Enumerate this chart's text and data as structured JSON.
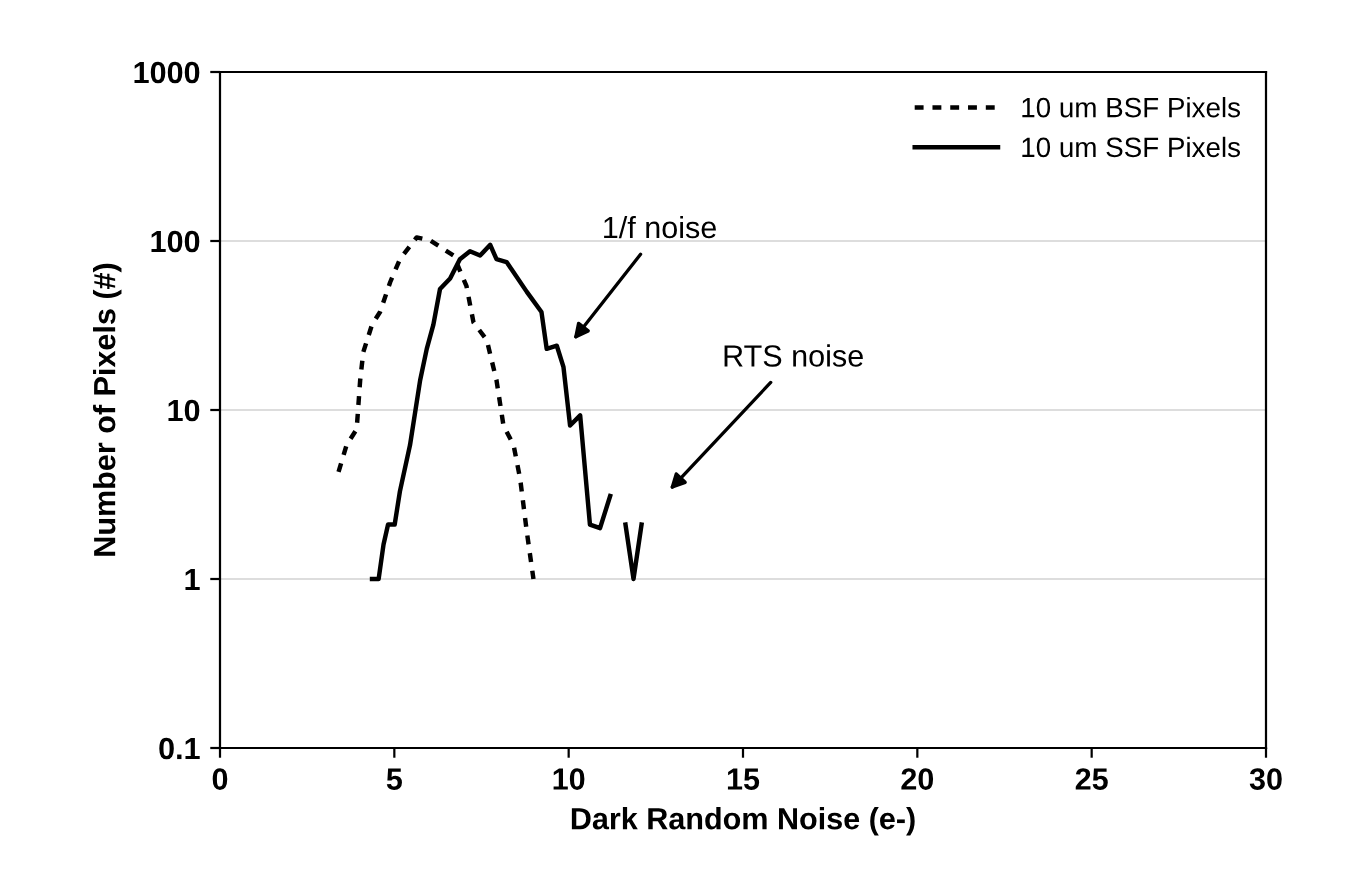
{
  "chart_data": {
    "type": "line",
    "xlabel": "Dark Random Noise (e-)",
    "ylabel": "Number of Pixels (#)",
    "log": "y",
    "grid": "y",
    "legend": "top right",
    "xlim": [
      0,
      30
    ],
    "xticks": [
      0,
      5,
      10,
      15,
      20,
      25,
      30
    ],
    "ylim": [
      0.1,
      1000
    ],
    "yticks": [
      0.1,
      1,
      10,
      100,
      1000
    ],
    "series": [
      {
        "name": "10 um BSF Pixels",
        "color": "#000000",
        "line_style": "dotted",
        "x": [
          3.4,
          3.63,
          3.92,
          4.02,
          4.11,
          4.36,
          4.59,
          4.88,
          5.16,
          5.64,
          6.02,
          6.7,
          7.07,
          7.27,
          7.65,
          7.93,
          8.13,
          8.42,
          8.61,
          8.8,
          8.99
        ],
        "values": [
          4.3,
          6.2,
          7.7,
          15,
          22,
          32,
          38,
          57,
          78,
          105,
          101,
          82,
          54,
          33,
          26,
          15,
          8.1,
          6.2,
          3.9,
          1.9,
          1.0
        ]
      },
      {
        "name": "10 um SSF Pixels",
        "color": "#000000",
        "line_style": "solid",
        "x": [
          4.36,
          4.55,
          4.69,
          4.82,
          5.01,
          5.16,
          5.45,
          5.74,
          5.93,
          6.12,
          6.31,
          6.6,
          6.88,
          7.17,
          7.46,
          7.75,
          7.93,
          8.22,
          8.8,
          9.22,
          9.37,
          9.66,
          9.85,
          10.04,
          10.33,
          10.61,
          10.9,
          11.19,
          11.4,
          11.63,
          11.86,
          12.09
        ],
        "values": [
          1.0,
          1.0,
          1.6,
          2.1,
          2.1,
          3.3,
          6.2,
          15,
          23,
          32,
          52,
          60,
          78,
          87,
          82,
          95,
          78,
          75,
          50,
          38,
          23,
          24,
          18,
          8.1,
          9.3,
          2.1,
          2.0,
          3.1,
          null,
          2.1,
          1.0,
          2.1
        ]
      }
    ],
    "annotations": [
      "1/f noise",
      "RTS noise"
    ]
  }
}
